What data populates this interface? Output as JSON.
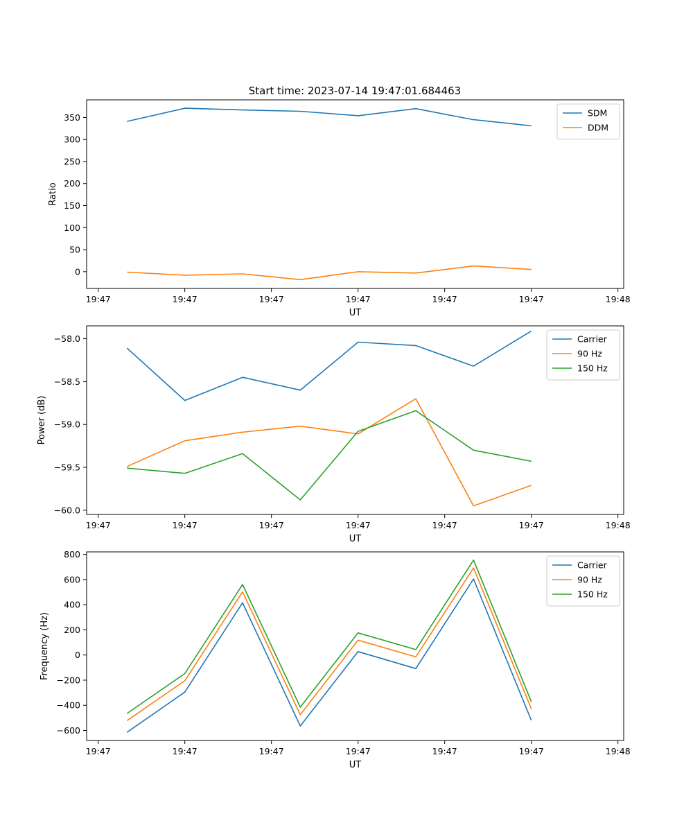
{
  "figure": {
    "title": "Start time: 2023-07-14 19:47:01.684463"
  },
  "colors": {
    "blue": "#1f77b4",
    "orange": "#ff7f0e",
    "green": "#2ca02c"
  },
  "chart_data": [
    {
      "type": "line",
      "title": "Start time: 2023-07-14 19:47:01.684463",
      "xlabel": "UT",
      "ylabel": "Ratio",
      "x": [
        1,
        2,
        3,
        4,
        5,
        6,
        7,
        8
      ],
      "xlim": [
        0.3,
        9.6
      ],
      "xticks": [
        0.5,
        2,
        3.5,
        5,
        6.5,
        8,
        9.5
      ],
      "xticklabels": [
        "19:47",
        "19:47",
        "19:47",
        "19:47",
        "19:47",
        "19:47",
        "19:48"
      ],
      "ylim": [
        -38,
        390
      ],
      "yticks": [
        0,
        50,
        100,
        150,
        200,
        250,
        300,
        350
      ],
      "yticklabels": [
        "0",
        "50",
        "100",
        "150",
        "200",
        "250",
        "300",
        "350"
      ],
      "legend_position": "top-right",
      "series": [
        {
          "name": "SDM",
          "color": "#1f77b4",
          "values": [
            341,
            371,
            367,
            364,
            354,
            370,
            345,
            331
          ]
        },
        {
          "name": "DDM",
          "color": "#ff7f0e",
          "values": [
            -1,
            -8,
            -5,
            -18,
            0,
            -3,
            13,
            5
          ]
        }
      ]
    },
    {
      "type": "line",
      "title": "",
      "xlabel": "UT",
      "ylabel": "Power (dB)",
      "x": [
        1,
        2,
        3,
        4,
        5,
        6,
        7,
        8
      ],
      "xlim": [
        0.3,
        9.6
      ],
      "xticks": [
        0.5,
        2,
        3.5,
        5,
        6.5,
        8,
        9.5
      ],
      "xticklabels": [
        "19:47",
        "19:47",
        "19:47",
        "19:47",
        "19:47",
        "19:47",
        "19:48"
      ],
      "ylim": [
        -60.05,
        -57.85
      ],
      "yticks": [
        -60.0,
        -59.5,
        -59.0,
        -58.5,
        -58.0
      ],
      "yticklabels": [
        "−60.0",
        "−59.5",
        "−59.0",
        "−58.5",
        "−58.0"
      ],
      "legend_position": "top-right",
      "series": [
        {
          "name": "Carrier",
          "color": "#1f77b4",
          "values": [
            -58.11,
            -58.72,
            -58.45,
            -58.6,
            -58.04,
            -58.08,
            -58.32,
            -57.91
          ]
        },
        {
          "name": "90 Hz",
          "color": "#ff7f0e",
          "values": [
            -59.49,
            -59.19,
            -59.09,
            -59.02,
            -59.11,
            -58.7,
            -59.95,
            -59.71
          ]
        },
        {
          "name": "150 Hz",
          "color": "#2ca02c",
          "values": [
            -59.51,
            -59.57,
            -59.34,
            -59.88,
            -59.08,
            -58.84,
            -59.3,
            -59.43
          ]
        }
      ]
    },
    {
      "type": "line",
      "title": "",
      "xlabel": "UT",
      "ylabel": "Frequency (Hz)",
      "x": [
        1,
        2,
        3,
        4,
        5,
        6,
        7,
        8
      ],
      "xlim": [
        0.3,
        9.6
      ],
      "xticks": [
        0.5,
        2,
        3.5,
        5,
        6.5,
        8,
        9.5
      ],
      "xticklabels": [
        "19:47",
        "19:47",
        "19:47",
        "19:47",
        "19:47",
        "19:47",
        "19:48"
      ],
      "ylim": [
        -680,
        820
      ],
      "yticks": [
        -600,
        -400,
        -200,
        0,
        200,
        400,
        600,
        800
      ],
      "yticklabels": [
        "−600",
        "−400",
        "−200",
        "0",
        "200",
        "400",
        "600",
        "800"
      ],
      "legend_position": "top-right",
      "series": [
        {
          "name": "Carrier",
          "color": "#1f77b4",
          "values": [
            -615,
            -295,
            415,
            -565,
            27,
            -108,
            605,
            -520
          ]
        },
        {
          "name": "90 Hz",
          "color": "#ff7f0e",
          "values": [
            -522,
            -205,
            502,
            -475,
            118,
            -15,
            692,
            -428
          ]
        },
        {
          "name": "150 Hz",
          "color": "#2ca02c",
          "values": [
            -465,
            -148,
            560,
            -415,
            176,
            43,
            755,
            -372
          ]
        }
      ]
    }
  ]
}
